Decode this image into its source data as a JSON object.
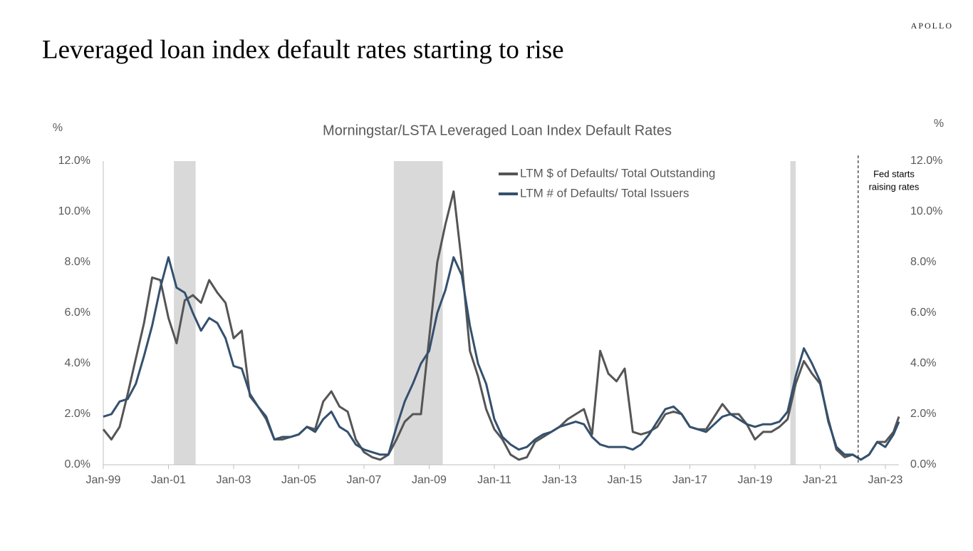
{
  "brand": "APOLLO",
  "headline": "Leveraged loan index default rates starting to rise",
  "chart_data": {
    "type": "line",
    "title": "Morningstar/LSTA Leveraged Loan Index Default Rates",
    "y_label": "%",
    "y2_label": "%",
    "x": [
      "Jan-99",
      "Apr-99",
      "Jul-99",
      "Oct-99",
      "Jan-00",
      "Apr-00",
      "Jul-00",
      "Oct-00",
      "Jan-01",
      "Apr-01",
      "Jul-01",
      "Oct-01",
      "Jan-02",
      "Apr-02",
      "Jul-02",
      "Oct-02",
      "Jan-03",
      "Apr-03",
      "Jul-03",
      "Oct-03",
      "Jan-04",
      "Apr-04",
      "Jul-04",
      "Oct-04",
      "Jan-05",
      "Apr-05",
      "Jul-05",
      "Oct-05",
      "Jan-06",
      "Apr-06",
      "Jul-06",
      "Oct-06",
      "Jan-07",
      "Apr-07",
      "Jul-07",
      "Oct-07",
      "Jan-08",
      "Apr-08",
      "Jul-08",
      "Oct-08",
      "Jan-09",
      "Apr-09",
      "Jul-09",
      "Oct-09",
      "Jan-10",
      "Apr-10",
      "Jul-10",
      "Oct-10",
      "Jan-11",
      "Apr-11",
      "Jul-11",
      "Oct-11",
      "Jan-12",
      "Apr-12",
      "Jul-12",
      "Oct-12",
      "Jan-13",
      "Apr-13",
      "Jul-13",
      "Oct-13",
      "Jan-14",
      "Apr-14",
      "Jul-14",
      "Oct-14",
      "Jan-15",
      "Apr-15",
      "Jul-15",
      "Oct-15",
      "Jan-16",
      "Apr-16",
      "Jul-16",
      "Oct-16",
      "Jan-17",
      "Apr-17",
      "Jul-17",
      "Oct-17",
      "Jan-18",
      "Apr-18",
      "Jul-18",
      "Oct-18",
      "Jan-19",
      "Apr-19",
      "Jul-19",
      "Oct-19",
      "Jan-20",
      "Apr-20",
      "Jul-20",
      "Oct-20",
      "Jan-21",
      "Apr-21",
      "Jul-21",
      "Oct-21",
      "Jan-22",
      "Apr-22",
      "Jul-22",
      "Oct-22",
      "Jan-23",
      "Apr-23",
      "Jun-23"
    ],
    "series": [
      {
        "name": "LTM $ of Defaults/ Total Outstanding",
        "color": "#555555",
        "values": [
          1.4,
          1.0,
          1.5,
          2.8,
          4.2,
          5.6,
          7.4,
          7.3,
          5.8,
          4.8,
          6.5,
          6.7,
          6.4,
          7.3,
          6.8,
          6.4,
          5.0,
          5.3,
          2.7,
          2.3,
          1.8,
          1.0,
          1.0,
          1.1,
          1.2,
          1.5,
          1.4,
          2.5,
          2.9,
          2.3,
          2.1,
          1.0,
          0.5,
          0.3,
          0.2,
          0.4,
          1.0,
          1.7,
          2.0,
          2.0,
          5.0,
          8.0,
          9.5,
          10.8,
          8.0,
          4.5,
          3.5,
          2.2,
          1.4,
          1.0,
          0.4,
          0.2,
          0.3,
          0.9,
          1.1,
          1.3,
          1.5,
          1.8,
          2.0,
          2.2,
          1.2,
          4.5,
          3.6,
          3.3,
          3.8,
          1.3,
          1.2,
          1.3,
          1.5,
          2.0,
          2.1,
          2.0,
          1.5,
          1.4,
          1.4,
          1.9,
          2.4,
          2.0,
          2.0,
          1.6,
          1.0,
          1.3,
          1.3,
          1.5,
          1.8,
          3.2,
          4.1,
          3.6,
          3.2,
          1.8,
          0.6,
          0.3,
          0.4,
          0.2,
          0.4,
          0.9,
          0.9,
          1.3,
          1.9
        ]
      },
      {
        "name": "LTM # of Defaults/ Total Issuers",
        "color": "#34506e",
        "values": [
          1.9,
          2.0,
          2.5,
          2.6,
          3.2,
          4.3,
          5.5,
          7.0,
          8.2,
          7.0,
          6.8,
          6.0,
          5.3,
          5.8,
          5.6,
          5.0,
          3.9,
          3.8,
          2.8,
          2.3,
          1.9,
          1.0,
          1.1,
          1.1,
          1.2,
          1.5,
          1.3,
          1.8,
          2.1,
          1.5,
          1.3,
          0.8,
          0.6,
          0.5,
          0.4,
          0.4,
          1.5,
          2.5,
          3.2,
          4.0,
          4.5,
          6.0,
          6.9,
          8.2,
          7.5,
          5.5,
          4.0,
          3.2,
          1.8,
          1.1,
          0.8,
          0.6,
          0.7,
          1.0,
          1.2,
          1.3,
          1.5,
          1.6,
          1.7,
          1.6,
          1.1,
          0.8,
          0.7,
          0.7,
          0.7,
          0.6,
          0.8,
          1.2,
          1.7,
          2.2,
          2.3,
          2.0,
          1.5,
          1.4,
          1.3,
          1.6,
          1.9,
          2.0,
          1.8,
          1.6,
          1.5,
          1.6,
          1.6,
          1.7,
          2.1,
          3.5,
          4.6,
          4.0,
          3.3,
          1.7,
          0.7,
          0.4,
          0.4,
          0.2,
          0.4,
          0.9,
          0.7,
          1.2,
          1.7
        ]
      }
    ],
    "xlim": [
      "Jan-99",
      "Jun-23"
    ],
    "xticks": [
      "Jan-99",
      "Jan-01",
      "Jan-03",
      "Jan-05",
      "Jan-07",
      "Jan-09",
      "Jan-11",
      "Jan-13",
      "Jan-15",
      "Jan-17",
      "Jan-19",
      "Jan-21",
      "Jan-23"
    ],
    "ylim": [
      0,
      12
    ],
    "yticks": [
      {
        "value": 0,
        "label": "0.0%"
      },
      {
        "value": 2,
        "label": "2.0%"
      },
      {
        "value": 4,
        "label": "4.0%"
      },
      {
        "value": 6,
        "label": "6.0%"
      },
      {
        "value": 8,
        "label": "8.0%"
      },
      {
        "value": 10,
        "label": "10.0%"
      },
      {
        "value": 12,
        "label": "12.0%"
      }
    ],
    "y2lim": [
      0,
      12
    ],
    "y2ticks": [
      {
        "value": 0,
        "label": "0.0%"
      },
      {
        "value": 2,
        "label": "2.0%"
      },
      {
        "value": 4,
        "label": "4.0%"
      },
      {
        "value": 6,
        "label": "6.0%"
      },
      {
        "value": 8,
        "label": "8.0%"
      },
      {
        "value": 10,
        "label": "10.0%"
      },
      {
        "value": 12,
        "label": "12.0%"
      }
    ],
    "shaded_periods": [
      [
        "Mar-01",
        "Nov-01"
      ],
      [
        "Dec-07",
        "Jun-09"
      ],
      [
        "Feb-20",
        "Apr-20"
      ]
    ],
    "shade_color": "#d9d9d9",
    "annotation": {
      "x": "Mar-22",
      "text": [
        "Fed starts",
        "raising rates"
      ]
    },
    "legend": "top"
  }
}
